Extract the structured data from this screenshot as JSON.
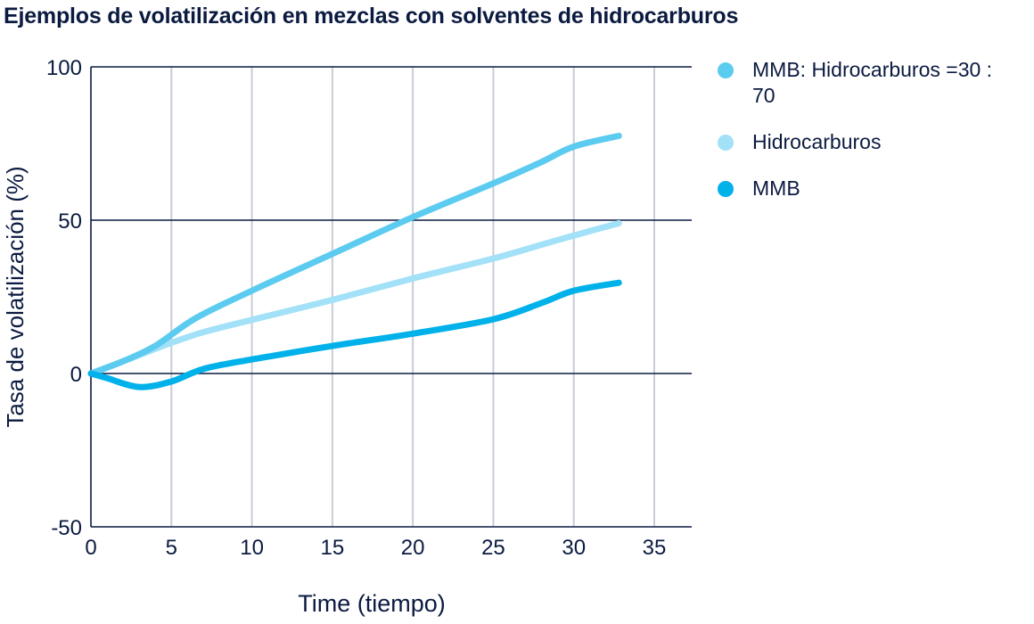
{
  "chart_data": {
    "type": "line",
    "title": "Ejemplos de volatilización en mezclas con solventes de hidrocarburos",
    "xlabel": "Time (tiempo)",
    "ylabel": "Tasa de volatilización (%)",
    "xlim": [
      0,
      37.3
    ],
    "ylim": [
      -50,
      100
    ],
    "xticks": [
      0,
      5,
      10,
      15,
      20,
      25,
      30,
      35
    ],
    "yticks": [
      -50,
      0,
      50,
      100
    ],
    "grid": {
      "vertical": true,
      "horizontal": true
    },
    "legend_position": "right",
    "series": [
      {
        "name": "MMB: Hidrocarburos =30 : 70",
        "color": "#5ccbf0",
        "x": [
          0,
          2,
          4,
          6.5,
          10,
          15,
          20,
          25,
          28,
          30,
          32.8
        ],
        "y": [
          0,
          4,
          9,
          18,
          27,
          39,
          51,
          62,
          69,
          74,
          77.5
        ]
      },
      {
        "name": "Hidrocarburos",
        "color": "#a2e1f7",
        "x": [
          0,
          2.5,
          5,
          7,
          10,
          15,
          20,
          25,
          28,
          30,
          32.8
        ],
        "y": [
          0,
          5,
          10,
          13.5,
          17.5,
          24,
          31,
          37.5,
          42,
          45,
          49
        ]
      },
      {
        "name": "MMB",
        "color": "#00b1ea",
        "x": [
          0,
          1,
          3,
          5,
          7,
          10,
          15,
          20,
          25,
          28,
          30,
          32.8
        ],
        "y": [
          0,
          -1.5,
          -4.4,
          -2.6,
          1.5,
          4.6,
          9,
          13,
          17.7,
          23,
          27,
          29.6
        ]
      }
    ]
  }
}
